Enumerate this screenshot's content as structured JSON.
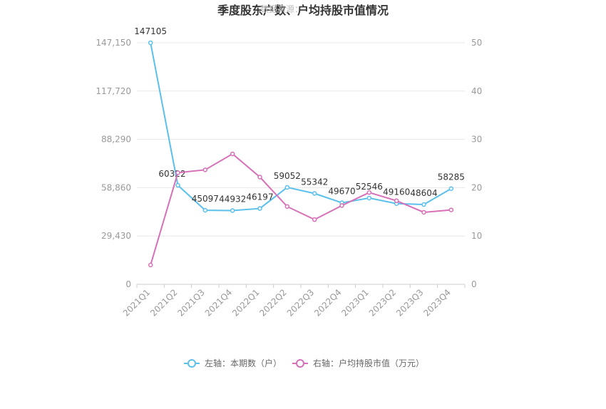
{
  "chart_data": {
    "type": "line",
    "title": "季度股东户数、户均持股市值情况",
    "watermark": "数据来源：",
    "categories": [
      "2021Q1",
      "2021Q2",
      "2021Q3",
      "2021Q4",
      "2022Q1",
      "2022Q2",
      "2022Q3",
      "2022Q4",
      "2023Q1",
      "2023Q2",
      "2023Q3",
      "2023Q4"
    ],
    "left_axis": {
      "min": 0,
      "max": 147150,
      "ticks": [
        0,
        29430,
        58860,
        88290,
        117720,
        147150
      ],
      "tick_labels": [
        "0",
        "29,430",
        "58,860",
        "88,290",
        "117,720",
        "147,150"
      ]
    },
    "right_axis": {
      "min": 0,
      "max": 50,
      "ticks": [
        0,
        10,
        20,
        30,
        40,
        50
      ],
      "tick_labels": [
        "0",
        "10",
        "20",
        "30",
        "40",
        "50"
      ]
    },
    "grid": true,
    "legend_position": "bottom-center",
    "series": [
      {
        "name": "左轴：本期数（户）",
        "axis": "left",
        "color": "#5bc0eb",
        "values": [
          147105,
          60322,
          45097,
          44932,
          46197,
          59052,
          55342,
          49670,
          52546,
          49160,
          48604,
          58285
        ],
        "data_labels": [
          "147105",
          "60322",
          "45097",
          "44932",
          "46197",
          "59052",
          "55342",
          "49670",
          "52546",
          "49160",
          "48604",
          "58285"
        ]
      },
      {
        "name": "右轴：户均持股市值（万元）",
        "axis": "right",
        "color": "#d670b8",
        "values": [
          4.0,
          23.1,
          23.7,
          27.0,
          22.2,
          16.1,
          13.4,
          16.3,
          19.0,
          17.3,
          14.9,
          15.4
        ]
      }
    ]
  }
}
